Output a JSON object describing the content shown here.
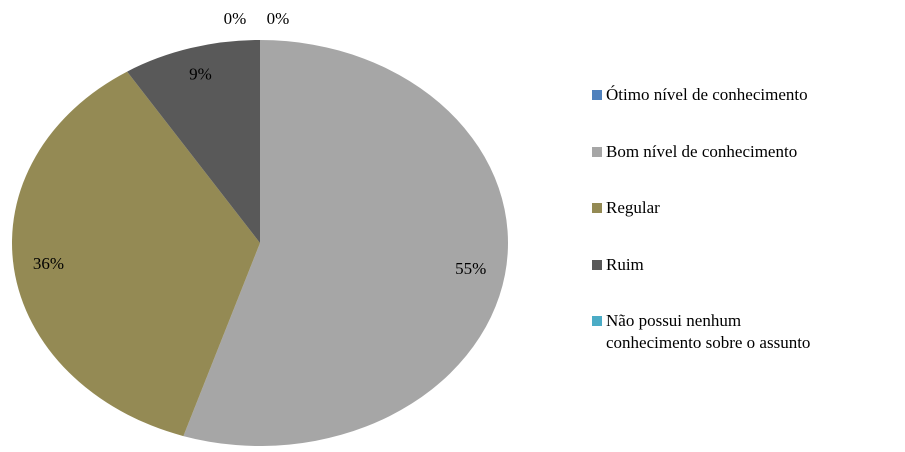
{
  "chart_data": {
    "type": "pie",
    "categories": [
      "Ótimo nível de conhecimento",
      "Bom nível de conhecimento",
      "Regular",
      "Ruim",
      "Não possui nenhum conhecimento sobre o assunto"
    ],
    "values": [
      0,
      55,
      36,
      9,
      0
    ],
    "value_labels": [
      "0%",
      "55%",
      "36%",
      "9%",
      "0%"
    ],
    "colors": [
      "#4f81bd",
      "#a6a6a6",
      "#948a54",
      "#595959",
      "#4bacc6"
    ],
    "legend": "right"
  }
}
